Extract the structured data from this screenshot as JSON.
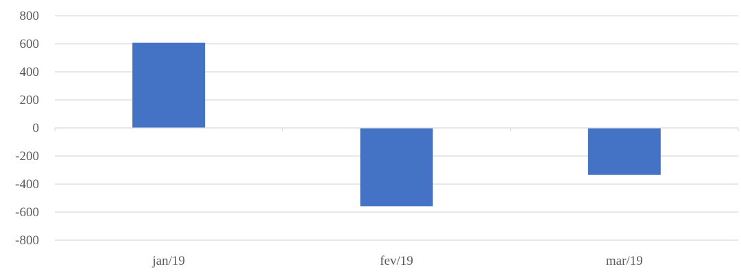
{
  "chart_data": {
    "type": "bar",
    "categories": [
      "jan/19",
      "fev/19",
      "mar/19"
    ],
    "series": [
      {
        "values": [
          607,
          -558,
          -335
        ]
      }
    ],
    "title": "",
    "xlabel": "",
    "ylabel": "",
    "ylim": [
      -800,
      800
    ],
    "yticks": [
      "800",
      "600",
      "400",
      "200",
      "0",
      "-200",
      "-400",
      "-600",
      "-800"
    ],
    "grid": true,
    "legend": "none",
    "colors": {
      "bar": "#4472C4",
      "grid": "#D9D9D9",
      "text": "#595959"
    }
  }
}
